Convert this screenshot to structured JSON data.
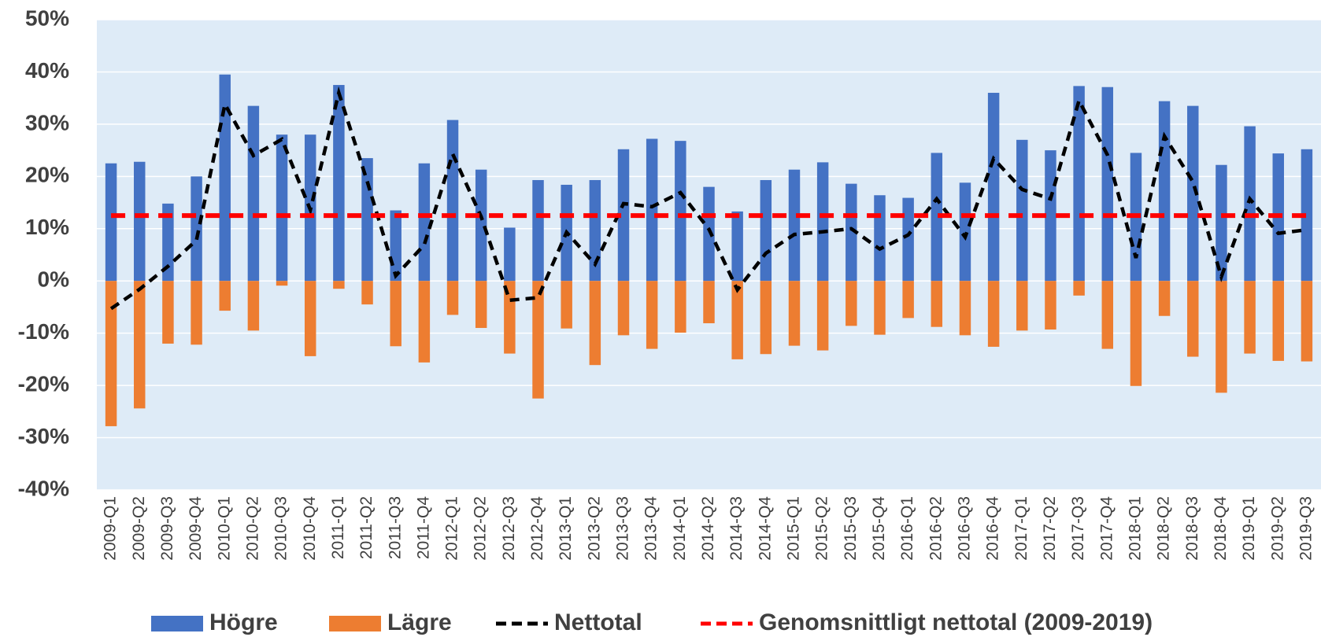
{
  "chart_data": {
    "type": "bar",
    "categories": [
      "2009-Q1",
      "2009-Q2",
      "2009-Q3",
      "2009-Q4",
      "2010-Q1",
      "2010-Q2",
      "2010-Q3",
      "2010-Q4",
      "2011-Q1",
      "2011-Q2",
      "2011-Q3",
      "2011-Q4",
      "2012-Q1",
      "2012-Q2",
      "2012-Q3",
      "2012-Q4",
      "2013-Q1",
      "2013-Q2",
      "2013-Q3",
      "2013-Q4",
      "2014-Q1",
      "2014-Q2",
      "2014-Q3",
      "2014-Q4",
      "2015-Q1",
      "2015-Q2",
      "2015-Q3",
      "2015-Q4",
      "2016-Q1",
      "2016-Q2",
      "2016-Q3",
      "2016-Q4",
      "2017-Q1",
      "2017-Q2",
      "2017-Q3",
      "2017-Q4",
      "2018-Q1",
      "2018-Q2",
      "2018-Q3",
      "2018-Q4",
      "2019-Q1",
      "2019-Q2",
      "2019-Q3"
    ],
    "series": [
      {
        "name": "Högre",
        "type": "bar",
        "color": "#4472c4",
        "values": [
          22.5,
          22.8,
          14.8,
          20,
          39.5,
          33.5,
          28,
          28,
          37.5,
          23.5,
          13.5,
          22.5,
          30.8,
          21.3,
          10.2,
          19.3,
          18.4,
          19.3,
          25.2,
          27.2,
          26.8,
          18,
          13.3,
          19.3,
          21.3,
          22.7,
          18.6,
          16.4,
          15.9,
          24.5,
          18.8,
          36,
          27,
          25,
          37.3,
          37.1,
          24.5,
          34.4,
          33.5,
          22.2,
          29.6,
          24.4,
          25.2
        ]
      },
      {
        "name": "Lägre",
        "type": "bar",
        "color": "#ed7d31",
        "values": [
          -27.8,
          -24.4,
          -12,
          -12.2,
          -5.7,
          -9.5,
          -0.9,
          -14.4,
          -1.5,
          -4.5,
          -12.5,
          -15.6,
          -6.5,
          -9,
          -13.9,
          -22.5,
          -9.1,
          -16.1,
          -10.4,
          -13,
          -9.9,
          -8.1,
          -15,
          -14,
          -12.4,
          -13.3,
          -8.6,
          -10.3,
          -7.1,
          -8.8,
          -10.4,
          -12.6,
          -9.5,
          -9.3,
          -2.8,
          -13,
          -20.1,
          -6.7,
          -14.5,
          -21.4,
          -13.9,
          -15.3,
          -15.4
        ]
      },
      {
        "name": "Nettotal",
        "type": "line",
        "color": "#000000",
        "values": [
          -5.3,
          -1.6,
          2.8,
          7.8,
          33.8,
          24,
          27.1,
          13.6,
          36,
          19,
          1,
          6.9,
          24.3,
          12.3,
          -3.7,
          -3.2,
          9.3,
          3.2,
          14.8,
          14.2,
          16.9,
          9.9,
          -1.7,
          5.3,
          8.9,
          9.4,
          10,
          6.1,
          8.8,
          15.7,
          8.4,
          23.4,
          17.5,
          15.7,
          34.5,
          24.1,
          4.4,
          27.7,
          19,
          0.8,
          15.7,
          9.1,
          9.8
        ]
      },
      {
        "name": "Genomsnittligt nettotal (2009-2019)",
        "type": "line",
        "color": "#ff0000",
        "values": [
          12.5,
          12.5,
          12.5,
          12.5,
          12.5,
          12.5,
          12.5,
          12.5,
          12.5,
          12.5,
          12.5,
          12.5,
          12.5,
          12.5,
          12.5,
          12.5,
          12.5,
          12.5,
          12.5,
          12.5,
          12.5,
          12.5,
          12.5,
          12.5,
          12.5,
          12.5,
          12.5,
          12.5,
          12.5,
          12.5,
          12.5,
          12.5,
          12.5,
          12.5,
          12.5,
          12.5,
          12.5,
          12.5,
          12.5,
          12.5,
          12.5,
          12.5,
          12.5
        ]
      }
    ],
    "ylim": [
      -40,
      50
    ],
    "yticks": [
      {
        "value": -40,
        "label": "-40%"
      },
      {
        "value": -30,
        "label": "-30%"
      },
      {
        "value": -20,
        "label": "-20%"
      },
      {
        "value": -10,
        "label": "-10%"
      },
      {
        "value": 0,
        "label": "0%"
      },
      {
        "value": 10,
        "label": "10%"
      },
      {
        "value": 20,
        "label": "20%"
      },
      {
        "value": 30,
        "label": "30%"
      },
      {
        "value": 40,
        "label": "40%"
      },
      {
        "value": 50,
        "label": "50%"
      }
    ],
    "grid": true,
    "legend": "bottom"
  }
}
